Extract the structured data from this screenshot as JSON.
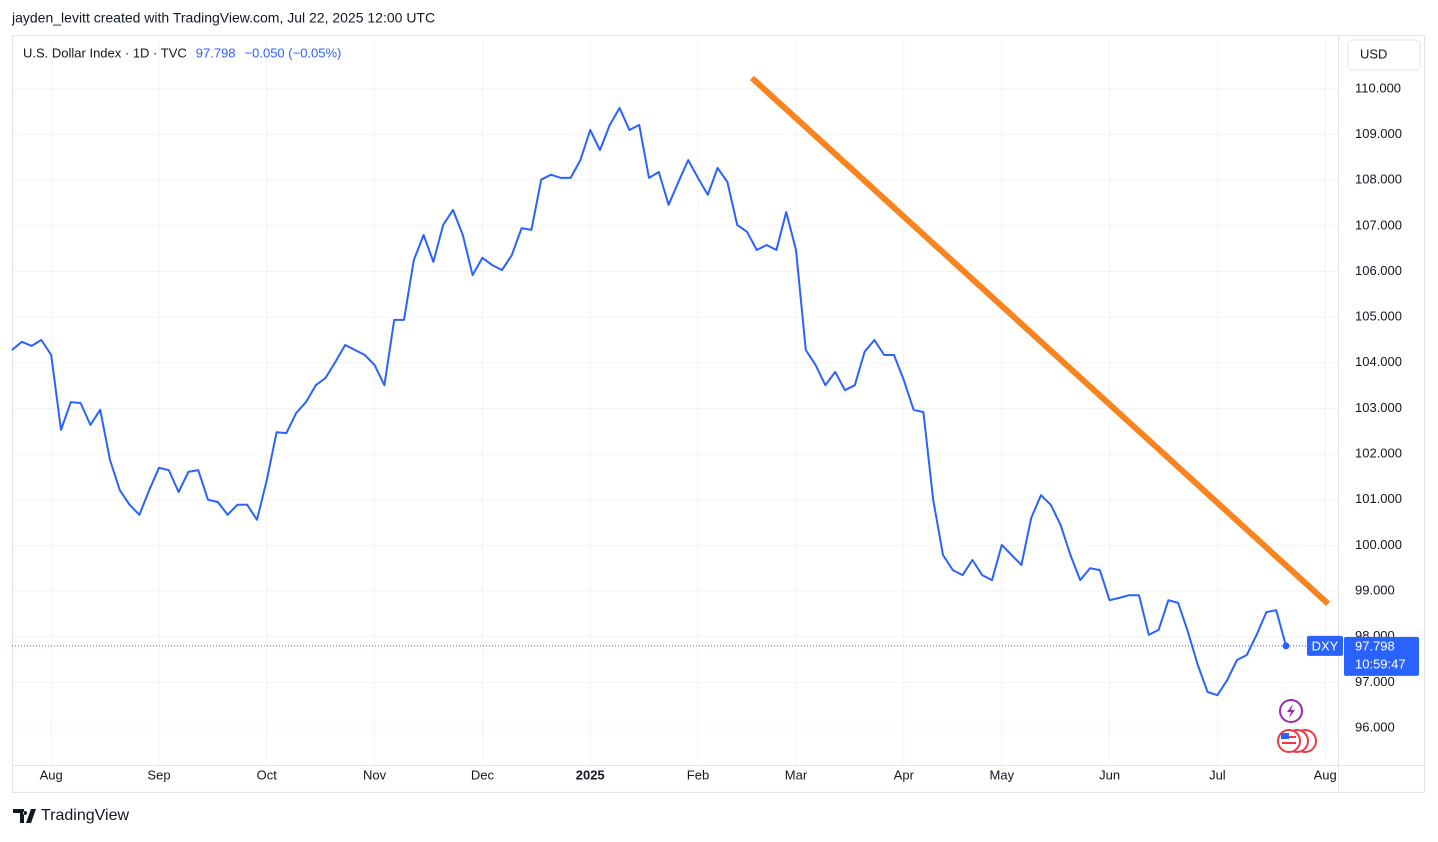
{
  "chart_data": {
    "type": "line",
    "header": "jayden_levitt created with TradingView.com, Jul 22, 2025 12:00 UTC",
    "title": "U.S. Dollar Index · 1D · TVC",
    "change": "−0.050 (−0.05%)",
    "currency": "USD",
    "symbol": "DXY",
    "countdown": "10:59:47",
    "brand": "TradingView",
    "categories": [
      null,
      null,
      null,
      null,
      "Aug",
      null,
      null,
      null,
      null,
      null,
      null,
      null,
      null,
      null,
      null,
      "Sep",
      null,
      null,
      null,
      null,
      null,
      null,
      null,
      null,
      null,
      null,
      "Oct",
      null,
      null,
      null,
      null,
      null,
      null,
      null,
      null,
      null,
      null,
      "Nov",
      null,
      null,
      null,
      null,
      null,
      null,
      null,
      null,
      null,
      null,
      "Dec",
      null,
      null,
      null,
      null,
      null,
      null,
      null,
      null,
      null,
      null,
      "2025",
      null,
      null,
      null,
      null,
      null,
      null,
      null,
      null,
      null,
      null,
      "Feb",
      null,
      null,
      null,
      null,
      null,
      null,
      null,
      null,
      null,
      "Mar",
      null,
      null,
      null,
      null,
      null,
      null,
      null,
      null,
      null,
      null,
      "Apr",
      null,
      null,
      null,
      null,
      null,
      null,
      null,
      null,
      null,
      "May",
      null,
      null,
      null,
      null,
      null,
      null,
      null,
      null,
      null,
      null,
      "Jun",
      null,
      null,
      null,
      null,
      null,
      null,
      null,
      null,
      null,
      null,
      "Jul",
      null,
      null,
      null,
      null,
      null,
      null,
      null,
      null,
      null,
      null,
      "Aug"
    ],
    "series": [
      {
        "name": "DXY",
        "color": "#2962ff",
        "values": [
          104.28,
          104.46,
          104.37,
          104.5,
          104.17,
          102.53,
          103.14,
          103.12,
          102.64,
          102.97,
          101.87,
          101.21,
          100.89,
          100.67,
          101.21,
          101.7,
          101.65,
          101.17,
          101.61,
          101.65,
          101.0,
          100.95,
          100.67,
          100.89,
          100.89,
          100.56,
          101.43,
          102.48,
          102.46,
          102.9,
          103.14,
          103.51,
          103.67,
          104.02,
          104.39,
          104.28,
          104.17,
          103.95,
          103.51,
          104.94,
          104.94,
          106.25,
          106.8,
          106.21,
          107.02,
          107.35,
          106.8,
          105.92,
          106.3,
          106.14,
          106.03,
          106.36,
          106.95,
          106.91,
          108.01,
          108.12,
          108.05,
          108.05,
          108.44,
          109.1,
          108.66,
          109.21,
          109.58,
          109.1,
          109.21,
          108.05,
          108.18,
          107.46,
          107.96,
          108.44,
          108.05,
          107.68,
          108.27,
          107.96,
          107.02,
          106.87,
          106.47,
          106.58,
          106.47,
          107.3,
          106.47,
          104.28,
          103.95,
          103.51,
          103.8,
          103.4,
          103.51,
          104.24,
          104.5,
          104.17,
          104.17,
          103.62,
          102.97,
          102.92,
          101.0,
          99.79,
          99.46,
          99.35,
          99.68,
          99.35,
          99.24,
          100.01,
          99.79,
          99.57,
          100.6,
          101.1,
          100.89,
          100.45,
          99.79,
          99.24,
          99.5,
          99.46,
          98.8,
          98.85,
          98.91,
          98.91,
          98.04,
          98.15,
          98.8,
          98.74,
          98.1,
          97.38,
          96.79,
          96.72,
          97.05,
          97.49,
          97.6,
          98.04,
          98.54,
          98.58,
          97.798,
          null,
          null,
          null,
          null
        ]
      }
    ],
    "trendline": {
      "x": [
        75.5,
        134.3
      ],
      "y": [
        110.24,
        98.72
      ],
      "color": "#f7841e"
    },
    "ylim": [
      95.19,
      111.18
    ],
    "yticks": [
      {
        "value": 96,
        "label": "96.000"
      },
      {
        "value": 97,
        "label": "97.000"
      },
      {
        "value": 98,
        "label": "98.000"
      },
      {
        "value": 99,
        "label": "99.000"
      },
      {
        "value": 100,
        "label": "100.000"
      },
      {
        "value": 101,
        "label": "101.000"
      },
      {
        "value": 102,
        "label": "102.000"
      },
      {
        "value": 103,
        "label": "103.000"
      },
      {
        "value": 104,
        "label": "104.000"
      },
      {
        "value": 105,
        "label": "105.000"
      },
      {
        "value": 106,
        "label": "106.000"
      },
      {
        "value": 107,
        "label": "107.000"
      },
      {
        "value": 108,
        "label": "108.000"
      },
      {
        "value": 109,
        "label": "109.000"
      },
      {
        "value": 110,
        "label": "110.000"
      }
    ],
    "grid": true
  }
}
